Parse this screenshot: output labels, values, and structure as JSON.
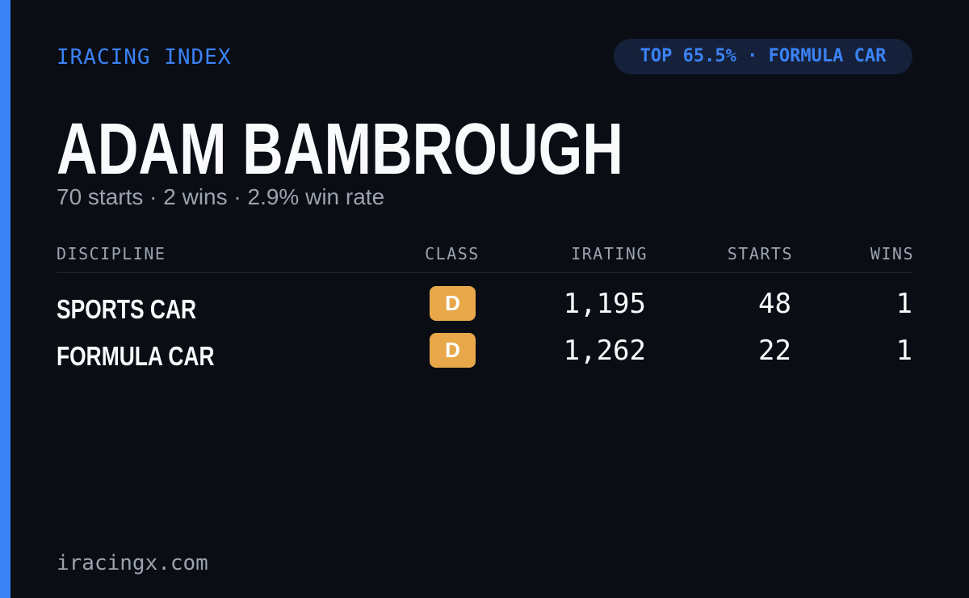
{
  "header": {
    "brand": "IRACING INDEX",
    "badge": "TOP 65.5% · FORMULA CAR"
  },
  "driver": {
    "name": "ADAM BAMBROUGH",
    "summary": "70 starts · 2 wins · 2.9% win rate"
  },
  "table": {
    "columns": [
      "DISCIPLINE",
      "CLASS",
      "IRATING",
      "STARTS",
      "WINS"
    ],
    "rows": [
      [
        "SPORTS CAR",
        "D",
        "1,195",
        "48",
        "1"
      ],
      [
        "FORMULA CAR",
        "D",
        "1,262",
        "22",
        "1"
      ]
    ]
  },
  "footer": {
    "site": "iracingx.com"
  }
}
